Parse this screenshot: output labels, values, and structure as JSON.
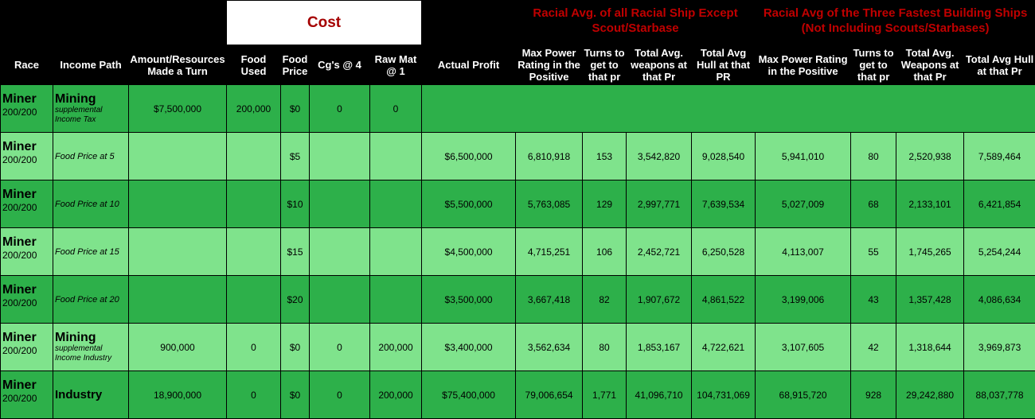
{
  "headers": {
    "race": "Race",
    "income_path": "Income Path",
    "amount": "Amount/Resources Made a Turn",
    "cost": "Cost",
    "food_used": "Food Used",
    "food_price": "Food Price",
    "cgs": "Cg's @ 4",
    "raw_mat": "Raw Mat @ 1",
    "actual_profit": "Actual Profit",
    "group_racial_avg": "Racial Avg. of all Racial Ship Except Scout/Starbase",
    "group_three_fastest": "Racial Avg of the Three Fastest Building Ships (Not Including Scouts/Starbases)",
    "max_power_a": "Max Power Rating in the Positive",
    "turns_a": "Turns to get to that pr",
    "weapons_a": "Total Avg. weapons at that Pr",
    "hull_a": "Total Avg Hull at that PR",
    "max_power_b": "Max Power Rating in the Positive",
    "turns_b": "Turns to get to that pr",
    "weapons_b": "Total Avg. Weapons at that Pr",
    "hull_b": "Total Avg Hull at that Pr"
  },
  "rows": [
    {
      "race": "Miner",
      "race_count": "200/200",
      "path_main": "Mining",
      "path_sub": "supplemental Income Tax",
      "amount": "$7,500,000",
      "food_used": "200,000",
      "food_price": "$0",
      "cgs": "0",
      "raw_mat": "0"
    },
    {
      "race": "Miner",
      "race_count": "200/200",
      "path_sub": "Food Price at 5",
      "food_price": "$5",
      "profit": "$6,500,000",
      "mp_a": "6,810,918",
      "turns_a": "153",
      "weap_a": "3,542,820",
      "hull_a": "9,028,540",
      "mp_b": "5,941,010",
      "turns_b": "80",
      "weap_b": "2,520,938",
      "hull_b": "7,589,464"
    },
    {
      "race": "Miner",
      "race_count": "200/200",
      "path_sub": "Food Price at 10",
      "food_price": "$10",
      "profit": "$5,500,000",
      "mp_a": "5,763,085",
      "turns_a": "129",
      "weap_a": "2,997,771",
      "hull_a": "7,639,534",
      "mp_b": "5,027,009",
      "turns_b": "68",
      "weap_b": "2,133,101",
      "hull_b": "6,421,854"
    },
    {
      "race": "Miner",
      "race_count": "200/200",
      "path_sub": "Food Price at 15",
      "food_price": "$15",
      "profit": "$4,500,000",
      "mp_a": "4,715,251",
      "turns_a": "106",
      "weap_a": "2,452,721",
      "hull_a": "6,250,528",
      "mp_b": "4,113,007",
      "turns_b": "55",
      "weap_b": "1,745,265",
      "hull_b": "5,254,244"
    },
    {
      "race": "Miner",
      "race_count": "200/200",
      "path_sub": "Food Price at 20",
      "food_price": "$20",
      "profit": "$3,500,000",
      "mp_a": "3,667,418",
      "turns_a": "82",
      "weap_a": "1,907,672",
      "hull_a": "4,861,522",
      "mp_b": "3,199,006",
      "turns_b": "43",
      "weap_b": "1,357,428",
      "hull_b": "4,086,634"
    },
    {
      "race": "Miner",
      "race_count": "200/200",
      "path_main": "Mining",
      "path_sub": "supplemental Income Industry",
      "amount": "900,000",
      "food_used": "0",
      "food_price": "$0",
      "cgs": "0",
      "raw_mat": "200,000",
      "profit": "$3,400,000",
      "mp_a": "3,562,634",
      "turns_a": "80",
      "weap_a": "1,853,167",
      "hull_a": "4,722,621",
      "mp_b": "3,107,605",
      "turns_b": "42",
      "weap_b": "1,318,644",
      "hull_b": "3,969,873"
    },
    {
      "race": "Miner",
      "race_count": "200/200",
      "path_main": "Industry",
      "amount": "18,900,000",
      "food_used": "0",
      "food_price": "$0",
      "cgs": "0",
      "raw_mat": "200,000",
      "profit": "$75,400,000",
      "mp_a": "79,006,654",
      "turns_a": "1,771",
      "weap_a": "41,096,710",
      "hull_a": "104,731,069",
      "mp_b": "68,915,720",
      "turns_b": "928",
      "weap_b": "29,242,880",
      "hull_b": "88,037,778"
    }
  ]
}
